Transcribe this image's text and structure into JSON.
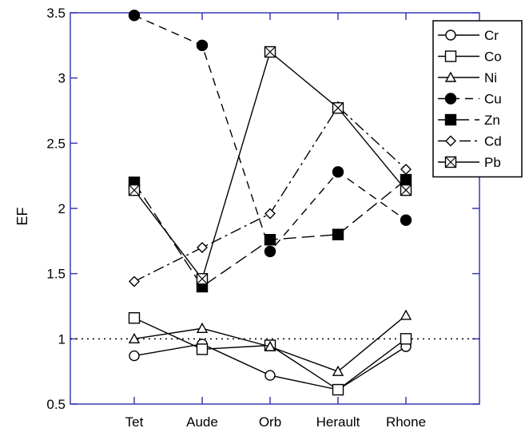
{
  "chart_data": {
    "type": "line",
    "title": "",
    "xlabel": "",
    "ylabel": "EF",
    "categories": [
      "Tet",
      "Aude",
      "Orb",
      "Herault",
      "Rhone"
    ],
    "ylim": [
      0.5,
      3.5
    ],
    "y_ticks": [
      {
        "value": 0.5,
        "label": "0.5"
      },
      {
        "value": 1,
        "label": "1"
      },
      {
        "value": 1.5,
        "label": "1.5"
      },
      {
        "value": 2,
        "label": "2"
      },
      {
        "value": 2.5,
        "label": "2.5"
      },
      {
        "value": 3,
        "label": "3"
      },
      {
        "value": 3.5,
        "label": "3.5"
      }
    ],
    "reference_line": {
      "value": 1,
      "style": "dotted"
    },
    "grid": false,
    "legend_position": "top-right",
    "axis_color": "#3b3bb5",
    "series": [
      {
        "name": "Cr",
        "marker": "circle-open",
        "dash": "solid",
        "values": [
          0.87,
          0.96,
          0.72,
          0.61,
          0.94
        ]
      },
      {
        "name": "Co",
        "marker": "square-open",
        "dash": "solid",
        "values": [
          1.16,
          0.92,
          0.95,
          0.61,
          1.0
        ]
      },
      {
        "name": "Ni",
        "marker": "triangle-open",
        "dash": "solid",
        "values": [
          1.0,
          1.08,
          0.94,
          0.75,
          1.18
        ]
      },
      {
        "name": "Cu",
        "marker": "circle-filled",
        "dash": "dashed",
        "values": [
          3.48,
          3.25,
          1.67,
          2.28,
          1.91
        ]
      },
      {
        "name": "Zn",
        "marker": "square-filled",
        "dash": "longdash",
        "values": [
          2.2,
          1.4,
          1.76,
          1.8,
          2.22
        ]
      },
      {
        "name": "Cd",
        "marker": "diamond-open",
        "dash": "dashdot",
        "values": [
          1.44,
          1.7,
          1.96,
          2.78,
          2.3
        ]
      },
      {
        "name": "Pb",
        "marker": "square-x",
        "dash": "solid",
        "values": [
          2.14,
          1.46,
          3.2,
          2.77,
          2.14
        ]
      }
    ]
  }
}
